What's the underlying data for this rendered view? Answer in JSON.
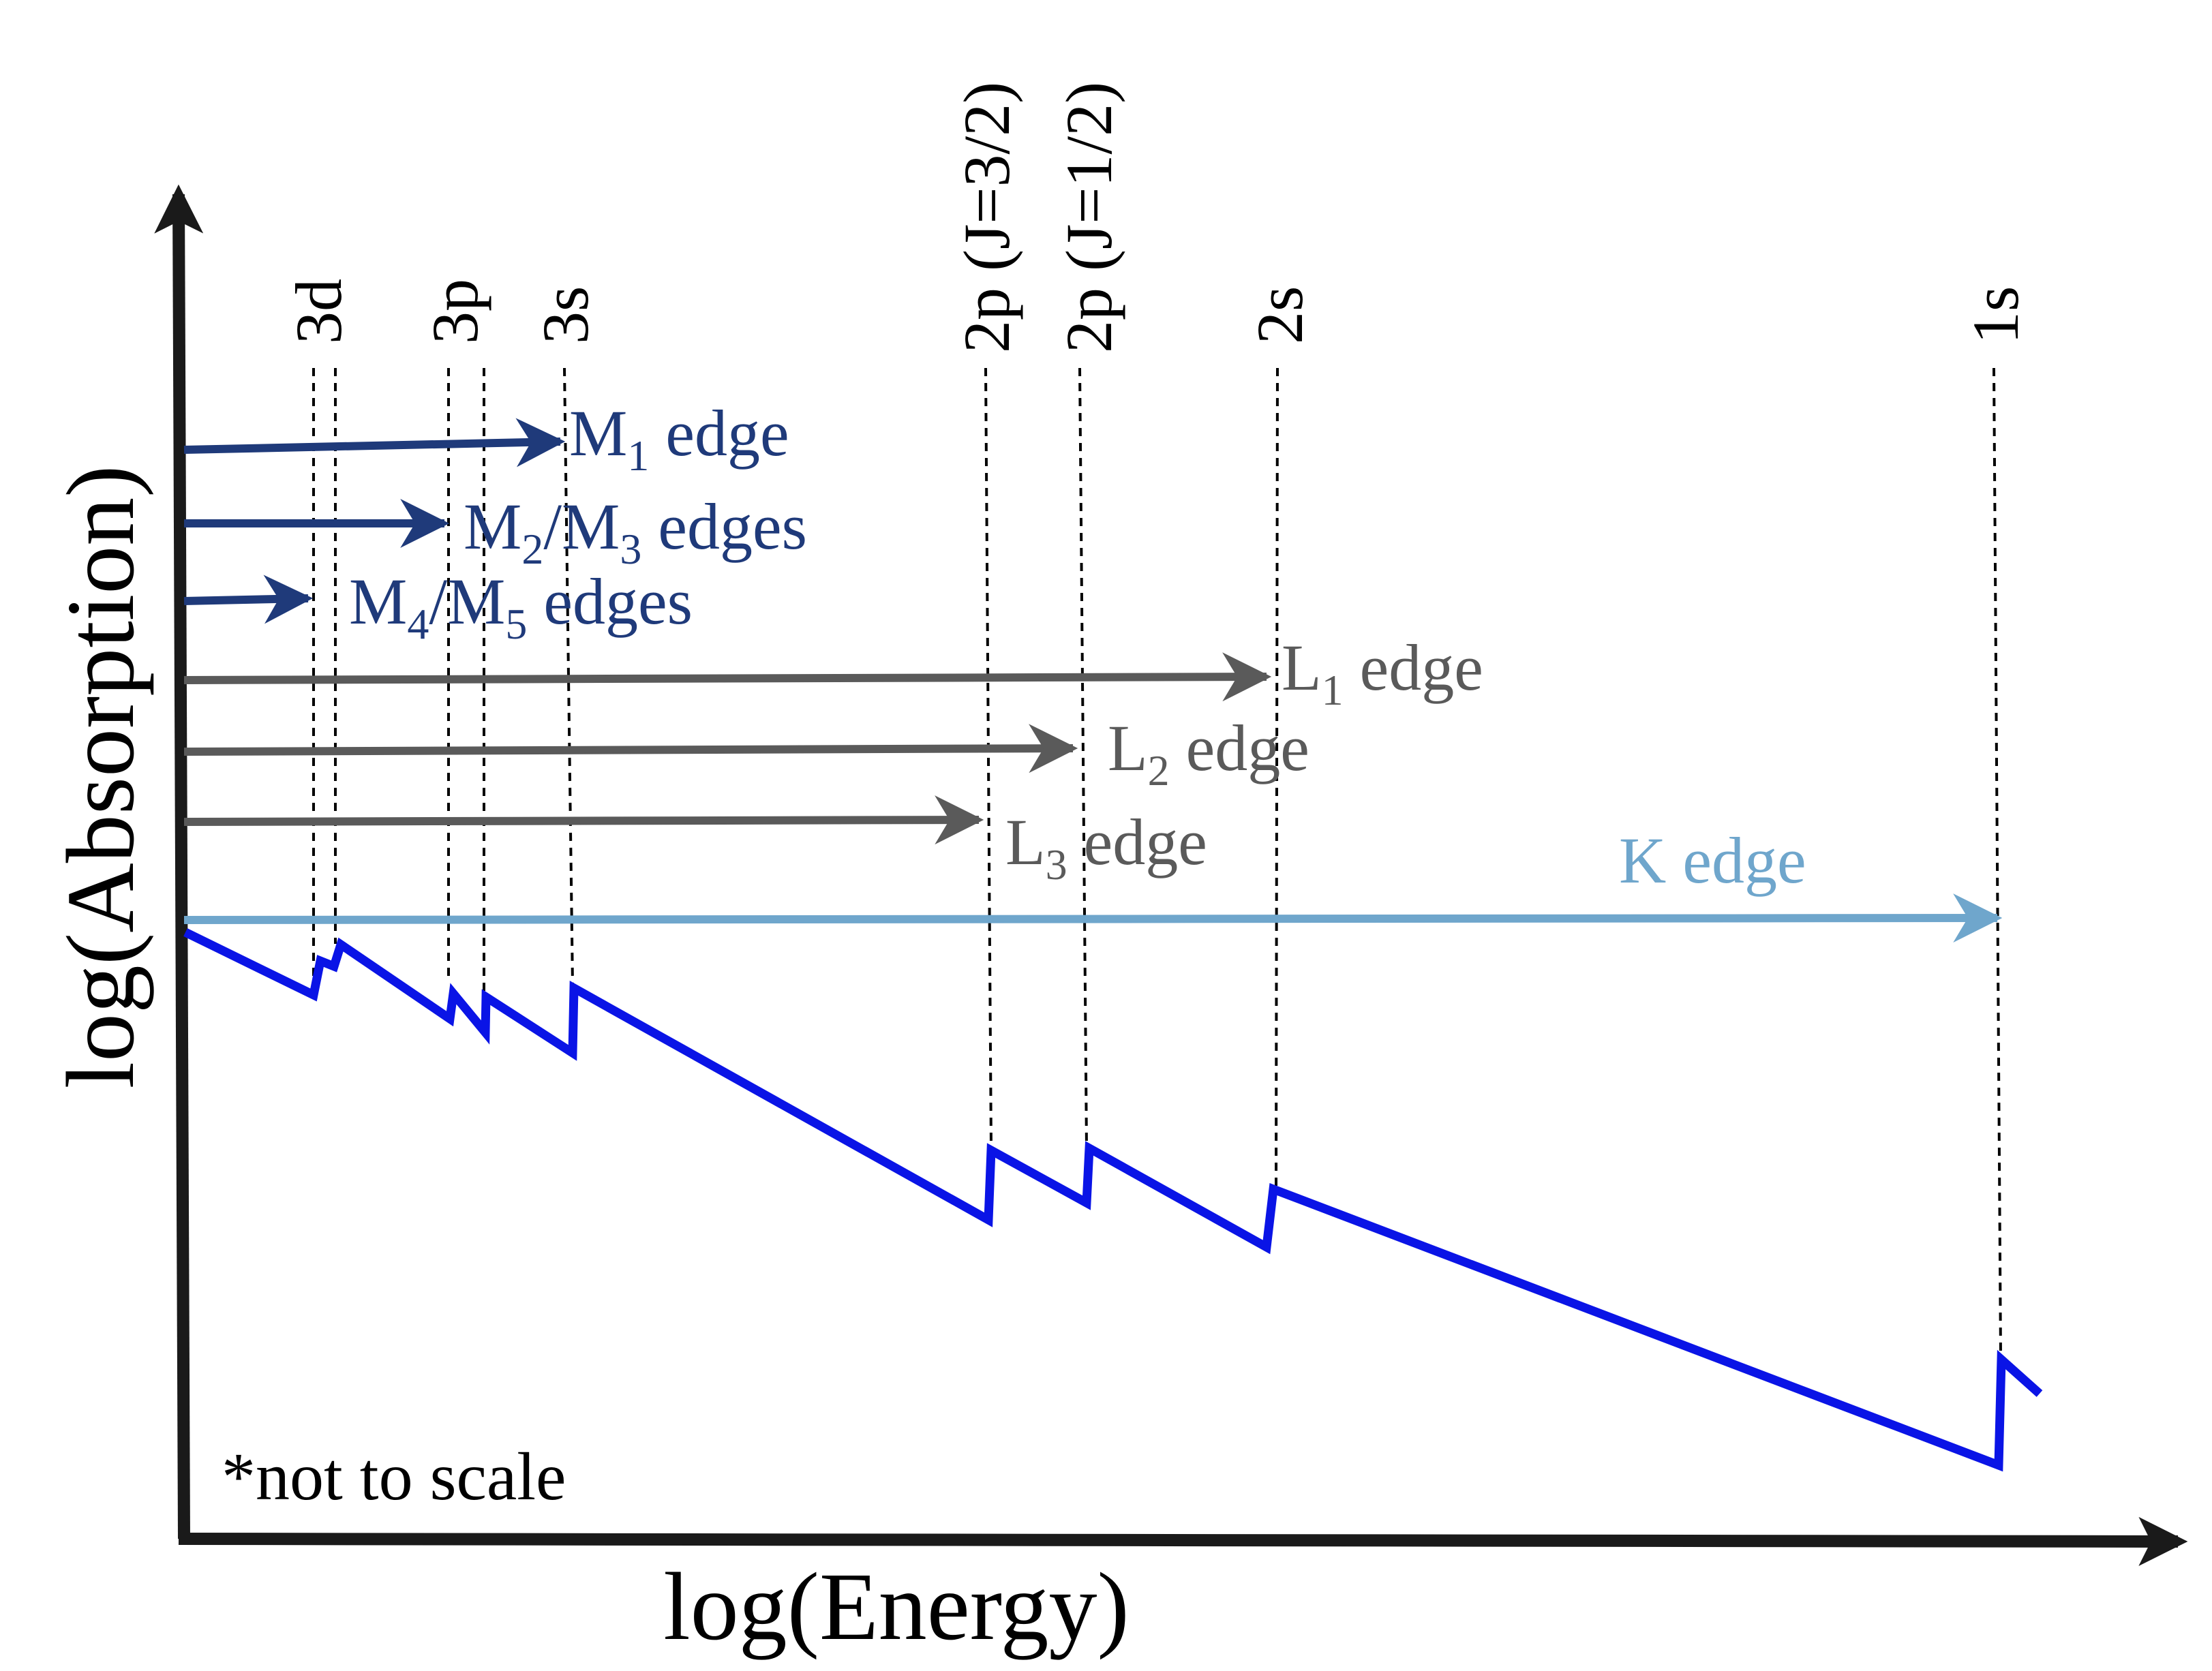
{
  "axes": {
    "x_label": "log(Energy)",
    "y_label": "log(Absorption)"
  },
  "note": "*not to scale",
  "levels": [
    {
      "id": "3d",
      "label": "3d"
    },
    {
      "id": "3p",
      "label": "3p"
    },
    {
      "id": "3s",
      "label": "3s"
    },
    {
      "id": "2p32",
      "label": "2p (J=3/2)"
    },
    {
      "id": "2p12",
      "label": "2p (J=1/2)"
    },
    {
      "id": "2s",
      "label": "2s"
    },
    {
      "id": "1s",
      "label": "1s"
    }
  ],
  "edges": {
    "M1": {
      "main": "M",
      "sub1": "1",
      "rest": " edge",
      "color": "#1f3a7a"
    },
    "M23": {
      "main": "M",
      "sub1": "2",
      "mid": "/M",
      "sub2": "3",
      "rest": " edges",
      "color": "#1f3a7a"
    },
    "M45": {
      "main": "M",
      "sub1": "4",
      "mid": "/M",
      "sub2": "5",
      "rest": " edges",
      "color": "#1f3a7a"
    },
    "L1": {
      "main": "L",
      "sub1": "1",
      "rest": " edge",
      "color": "#5a5a5a"
    },
    "L2": {
      "main": "L",
      "sub1": "2",
      "rest": " edge",
      "color": "#5a5a5a"
    },
    "L3": {
      "main": "L",
      "sub1": "3",
      "rest": " edge",
      "color": "#5a5a5a"
    },
    "K": {
      "label": "K edge",
      "color": "#6fa6cc"
    }
  },
  "colors": {
    "axis": "#1a1a1a",
    "absorption_curve": "#0a14e6",
    "m_edges": "#1f3a7a",
    "l_edges": "#5a5a5a",
    "k_edge": "#6fa6cc",
    "level_lines": "#000000"
  }
}
